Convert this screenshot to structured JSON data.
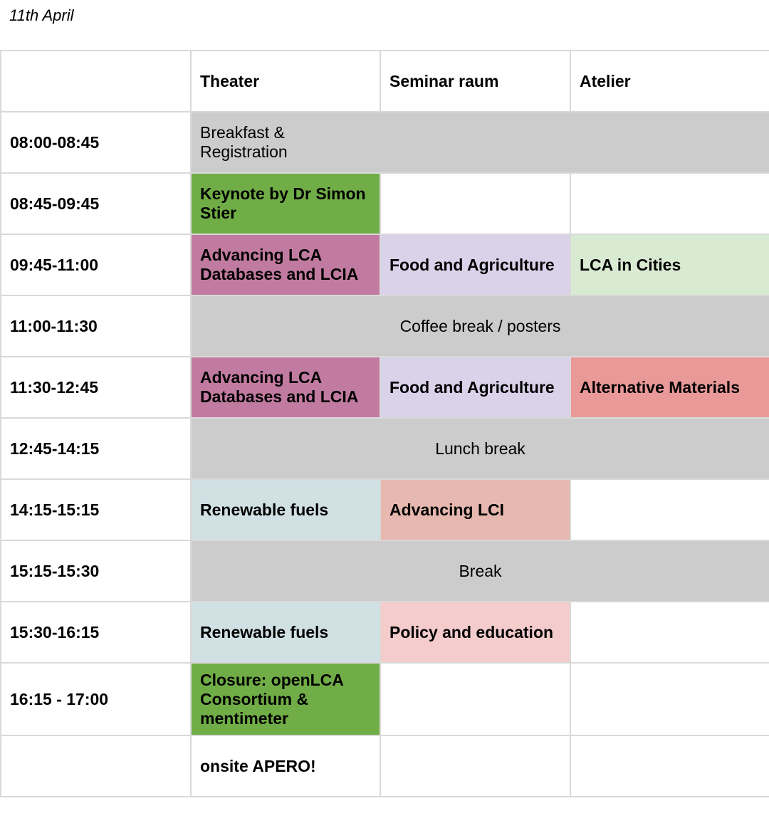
{
  "date": "11th April",
  "colors": {
    "gray": "#cccccc",
    "keynote_green": "#70ad47",
    "magenta": "#c27ba0",
    "lavender": "#d9d2e9",
    "mint": "#d9ead3",
    "salmon": "#ea9999",
    "blue_gray": "#d0e0e3",
    "peach": "#e6b8af",
    "pink": "#f4cccc"
  },
  "rooms": [
    "Theater",
    "Seminar raum",
    "Atelier"
  ],
  "rows": [
    {
      "time": "08:00-08:45",
      "cells": [
        "Breakfast & Registration"
      ]
    },
    {
      "time": "08:45-09:45",
      "cells": [
        "Keynote by Dr Simon Stier",
        "",
        ""
      ]
    },
    {
      "time": "09:45-11:00",
      "cells": [
        "Advancing LCA Databases and LCIA",
        "Food and Agriculture",
        "LCA in Cities"
      ]
    },
    {
      "time": "11:00-11:30",
      "cells": [
        "Coffee break / posters"
      ]
    },
    {
      "time": "11:30-12:45",
      "cells": [
        "Advancing LCA Databases and LCIA",
        "Food and Agriculture",
        "Alternative Materials"
      ]
    },
    {
      "time": "12:45-14:15",
      "cells": [
        "Lunch break"
      ]
    },
    {
      "time": "14:15-15:15",
      "cells": [
        "Renewable fuels",
        "Advancing LCI",
        ""
      ]
    },
    {
      "time": "15:15-15:30",
      "cells": [
        "Break"
      ]
    },
    {
      "time": "15:30-16:15",
      "cells": [
        "Renewable fuels",
        "Policy and education",
        ""
      ]
    },
    {
      "time": "16:15 - 17:00",
      "cells": [
        "Closure: openLCA Consortium & mentimeter",
        "",
        ""
      ]
    },
    {
      "time": "",
      "cells": [
        "onsite APERO!",
        "",
        ""
      ]
    }
  ]
}
